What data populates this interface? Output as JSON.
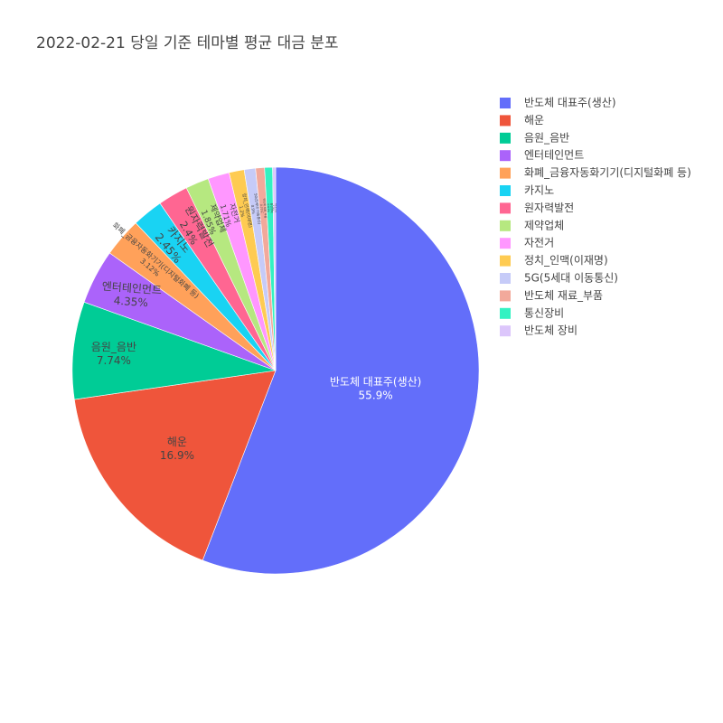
{
  "chart_data": {
    "type": "pie",
    "title": "2022-02-21 당일 기준 테마별 평균 대금 분포",
    "slices": [
      {
        "label": "반도체 대표주(생산)",
        "value": 55.9,
        "value_text": "55.9%",
        "color": "#636efa",
        "text_color": "#ffffff",
        "font": 12
      },
      {
        "label": "해운",
        "value": 16.9,
        "value_text": "16.9%",
        "color": "#EF553B",
        "text_color": "#444444",
        "font": 12
      },
      {
        "label": "음원_음반",
        "value": 7.74,
        "value_text": "7.74%",
        "color": "#00cc96",
        "text_color": "#444444",
        "font": 12
      },
      {
        "label": "엔터테인먼트",
        "value": 4.35,
        "value_text": "4.35%",
        "color": "#ab63fa",
        "text_color": "#444444",
        "font": 12
      },
      {
        "label": "화폐_금융자동화기기(디지털화폐 등)",
        "value": 3.12,
        "value_text": "3.12%",
        "color": "#FFA15A",
        "text_color": "#444444",
        "font": 8
      },
      {
        "label": "카지노",
        "value": 2.45,
        "value_text": "2.45%",
        "color": "#19d3f3",
        "text_color": "#444444",
        "font": 12
      },
      {
        "label": "원자력발전",
        "value": 2.4,
        "value_text": "2.4%",
        "color": "#FF6692",
        "text_color": "#444444",
        "font": 11
      },
      {
        "label": "제약업체",
        "value": 1.85,
        "value_text": "1.85%",
        "color": "#B6E880",
        "text_color": "#444444",
        "font": 9
      },
      {
        "label": "자전거",
        "value": 1.71,
        "value_text": "1.71%",
        "color": "#FF97FF",
        "text_color": "#444444",
        "font": 8
      },
      {
        "label": "정치_인맥(이재명)",
        "value": 1.2,
        "value_text": "1.2%",
        "color": "#FECB52",
        "text_color": "#444444",
        "font": 5
      },
      {
        "label": "5G(5세대 이동통신)",
        "value": 0.9,
        "value_text": "0.9%",
        "color": "#c6cbf8",
        "text_color": "#444444",
        "font": 4
      },
      {
        "label": "반도체 재료_부품",
        "value": 0.71,
        "value_text": "0.71%",
        "color": "#f2a99b",
        "text_color": "#444444",
        "font": 3
      },
      {
        "label": "통신장비",
        "value": 0.63,
        "value_text": "0.63%",
        "color": "#33f2c2",
        "text_color": "#444444",
        "font": 3
      },
      {
        "label": "반도체 장비",
        "value": 0.24,
        "value_text": "0.24%",
        "color": "#dcc6fb",
        "text_color": "#444444",
        "font": 2
      }
    ],
    "direction": "clockwise",
    "start_angle": "12 o'clock",
    "legend_placement": "top-right"
  }
}
